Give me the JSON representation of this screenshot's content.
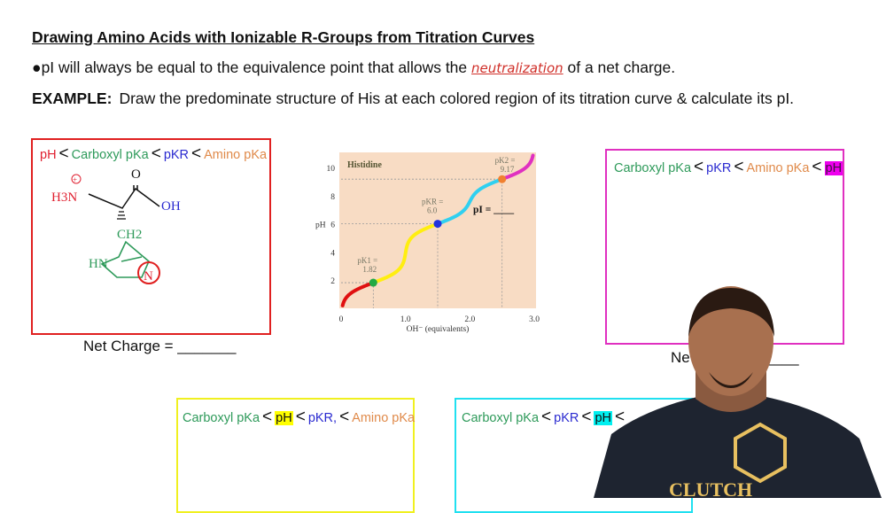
{
  "title": "Drawing Amino Acids with Ionizable R-Groups from Titration Curves",
  "bullet": {
    "prefix": "●pI will always be equal to the equivalence point that allows the ",
    "handwritten": "neutralization",
    "suffix": " of a net charge."
  },
  "example": {
    "label": "EXAMPLE:",
    "text": "Draw the predominate structure of His at each colored region of its titration curve & calculate its pI."
  },
  "boxes": {
    "red": {
      "color": "#e02020",
      "terms": [
        "pH",
        "Carboxyl pKa",
        "pKR",
        "Amino pKa"
      ],
      "net_charge": "Net Charge = _______"
    },
    "magenta": {
      "color": "#e030c0",
      "terms": [
        "Carboxyl pKa",
        "pKR",
        "Amino pKa",
        "pH"
      ],
      "net_charge": "Net Charge = _______",
      "net_partial": "Ne",
      "net_blank": "= _______"
    },
    "yellow": {
      "color": "#f0f020",
      "terms": [
        "Carboxyl pKa",
        "pH",
        "pKR,",
        "Amino pKa"
      ]
    },
    "cyan": {
      "color": "#20e0f0",
      "terms": [
        "Carboxyl pKa",
        "pKR",
        "pH",
        "<"
      ]
    }
  },
  "structure": {
    "amine": "H3N",
    "charge": "+",
    "carbonyl_o": "O",
    "hydroxyl": "OH",
    "ch2": "CH2",
    "ring_nh": "HN",
    "ring_n": "N"
  },
  "chart_data": {
    "type": "line",
    "title": "Histidine",
    "xlabel": "OH⁻ (equivalents)",
    "ylabel": "pH",
    "xlim": [
      0,
      3.0
    ],
    "ylim": [
      0,
      11
    ],
    "xticks": [
      "0",
      "1.0",
      "2.0",
      "3.0"
    ],
    "yticks": [
      "2",
      "4",
      "6",
      "8",
      "10"
    ],
    "pK_points": [
      {
        "label": "pK1 =",
        "value": "1.82",
        "x": 0.5,
        "y": 1.82,
        "color": "#22aa44"
      },
      {
        "label": "pKR =",
        "value": "6.0",
        "x": 1.5,
        "y": 6.0,
        "color": "#2233dd"
      },
      {
        "label": "pK2 =",
        "value": "9.17",
        "x": 2.5,
        "y": 9.17,
        "color": "#f08030"
      }
    ],
    "segments": [
      {
        "from": 0,
        "to": 0.5,
        "color": "#e01010"
      },
      {
        "from": 0.5,
        "to": 1.5,
        "color": "#ffee10"
      },
      {
        "from": 1.5,
        "to": 2.5,
        "color": "#30d0f0"
      },
      {
        "from": 2.5,
        "to": 3.0,
        "color": "#e030c0"
      }
    ],
    "annotation": "pI = ____",
    "background": "#f8dcc4"
  },
  "presenter": {
    "shirt_logo": "CLUTCH"
  }
}
